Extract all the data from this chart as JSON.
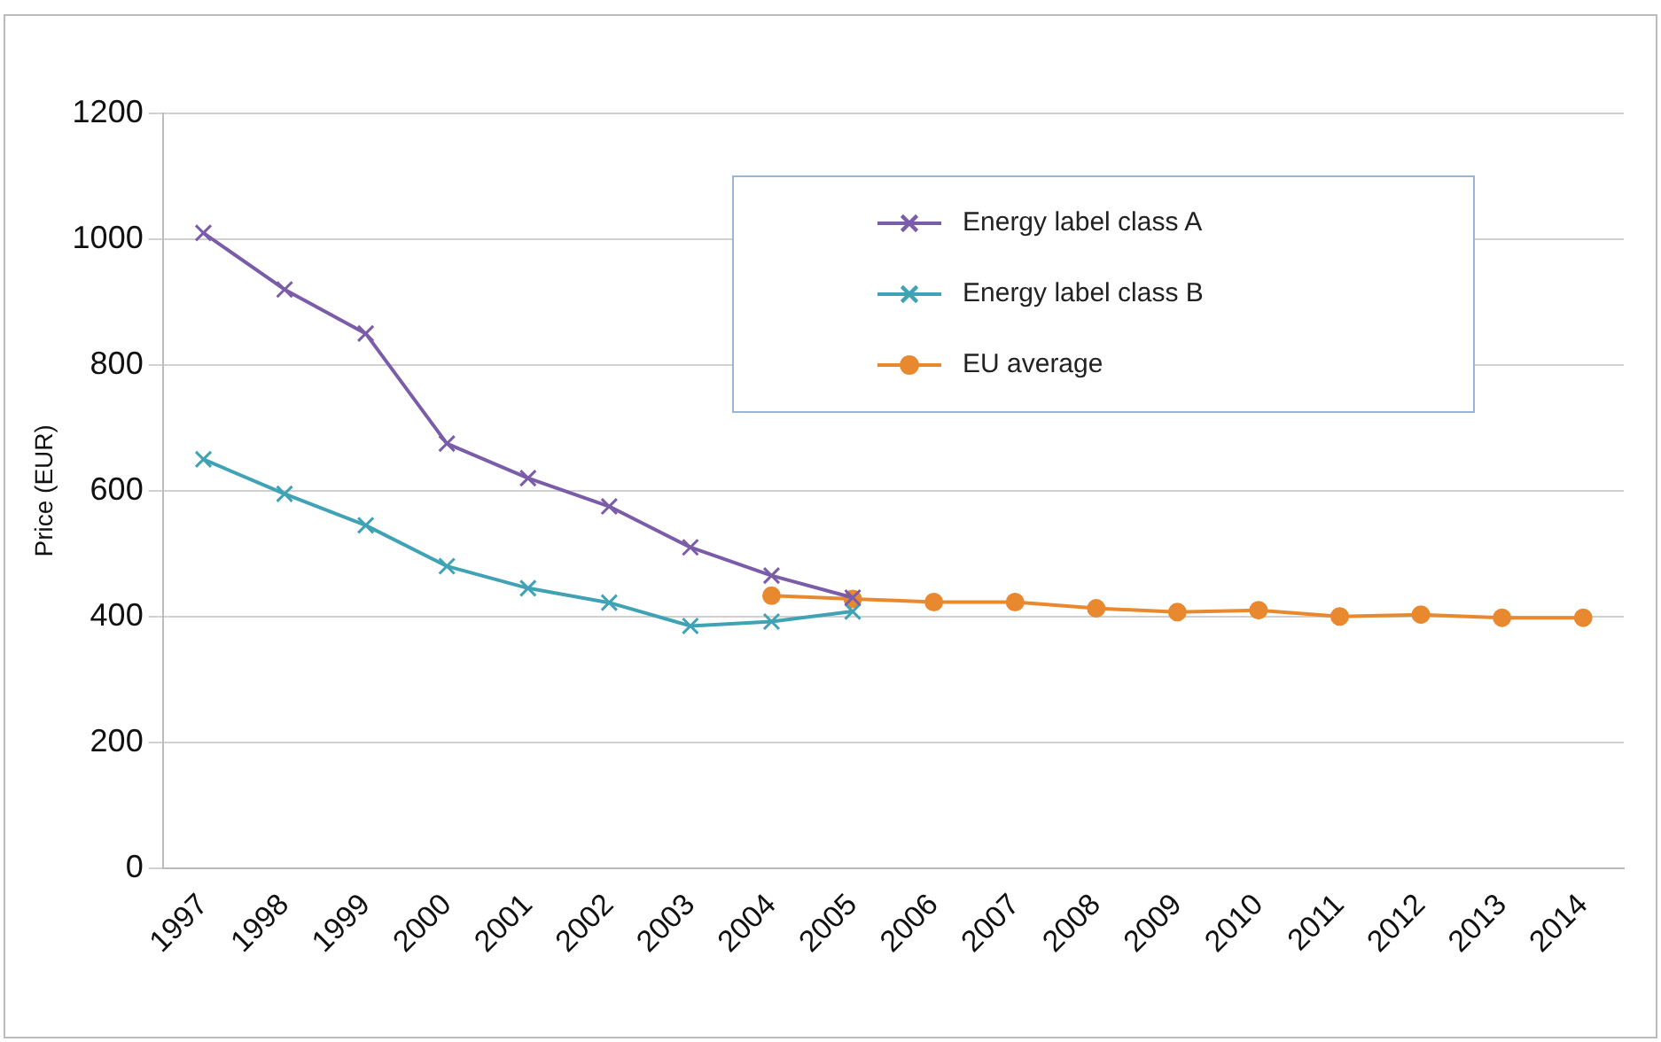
{
  "chart_data": {
    "type": "line",
    "ylabel": "Price (EUR)",
    "categories": [
      "1997",
      "1998",
      "1999",
      "2000",
      "2001",
      "2002",
      "2003",
      "2004",
      "2005",
      "2006",
      "2007",
      "2008",
      "2009",
      "2010",
      "2011",
      "2012",
      "2013",
      "2014"
    ],
    "series": [
      {
        "name": "Energy label class A",
        "color": "#7a5ca8",
        "marker": "cross",
        "values": [
          1010,
          920,
          850,
          675,
          620,
          575,
          510,
          465,
          430,
          null,
          null,
          null,
          null,
          null,
          null,
          null,
          null,
          null
        ]
      },
      {
        "name": "Energy label class B",
        "color": "#3fa3b5",
        "marker": "cross",
        "values": [
          650,
          595,
          545,
          480,
          445,
          422,
          385,
          392,
          408,
          null,
          null,
          null,
          null,
          null,
          null,
          null,
          null,
          null
        ]
      },
      {
        "name": "EU average",
        "color": "#e8892f",
        "marker": "circle",
        "values": [
          null,
          null,
          null,
          null,
          null,
          null,
          null,
          433,
          428,
          423,
          423,
          413,
          407,
          410,
          400,
          403,
          398,
          398
        ]
      }
    ],
    "ylim": [
      0,
      1200
    ],
    "yticks": [
      0,
      200,
      400,
      600,
      800,
      1000,
      1200
    ],
    "grid": "y",
    "legend": "top right"
  }
}
